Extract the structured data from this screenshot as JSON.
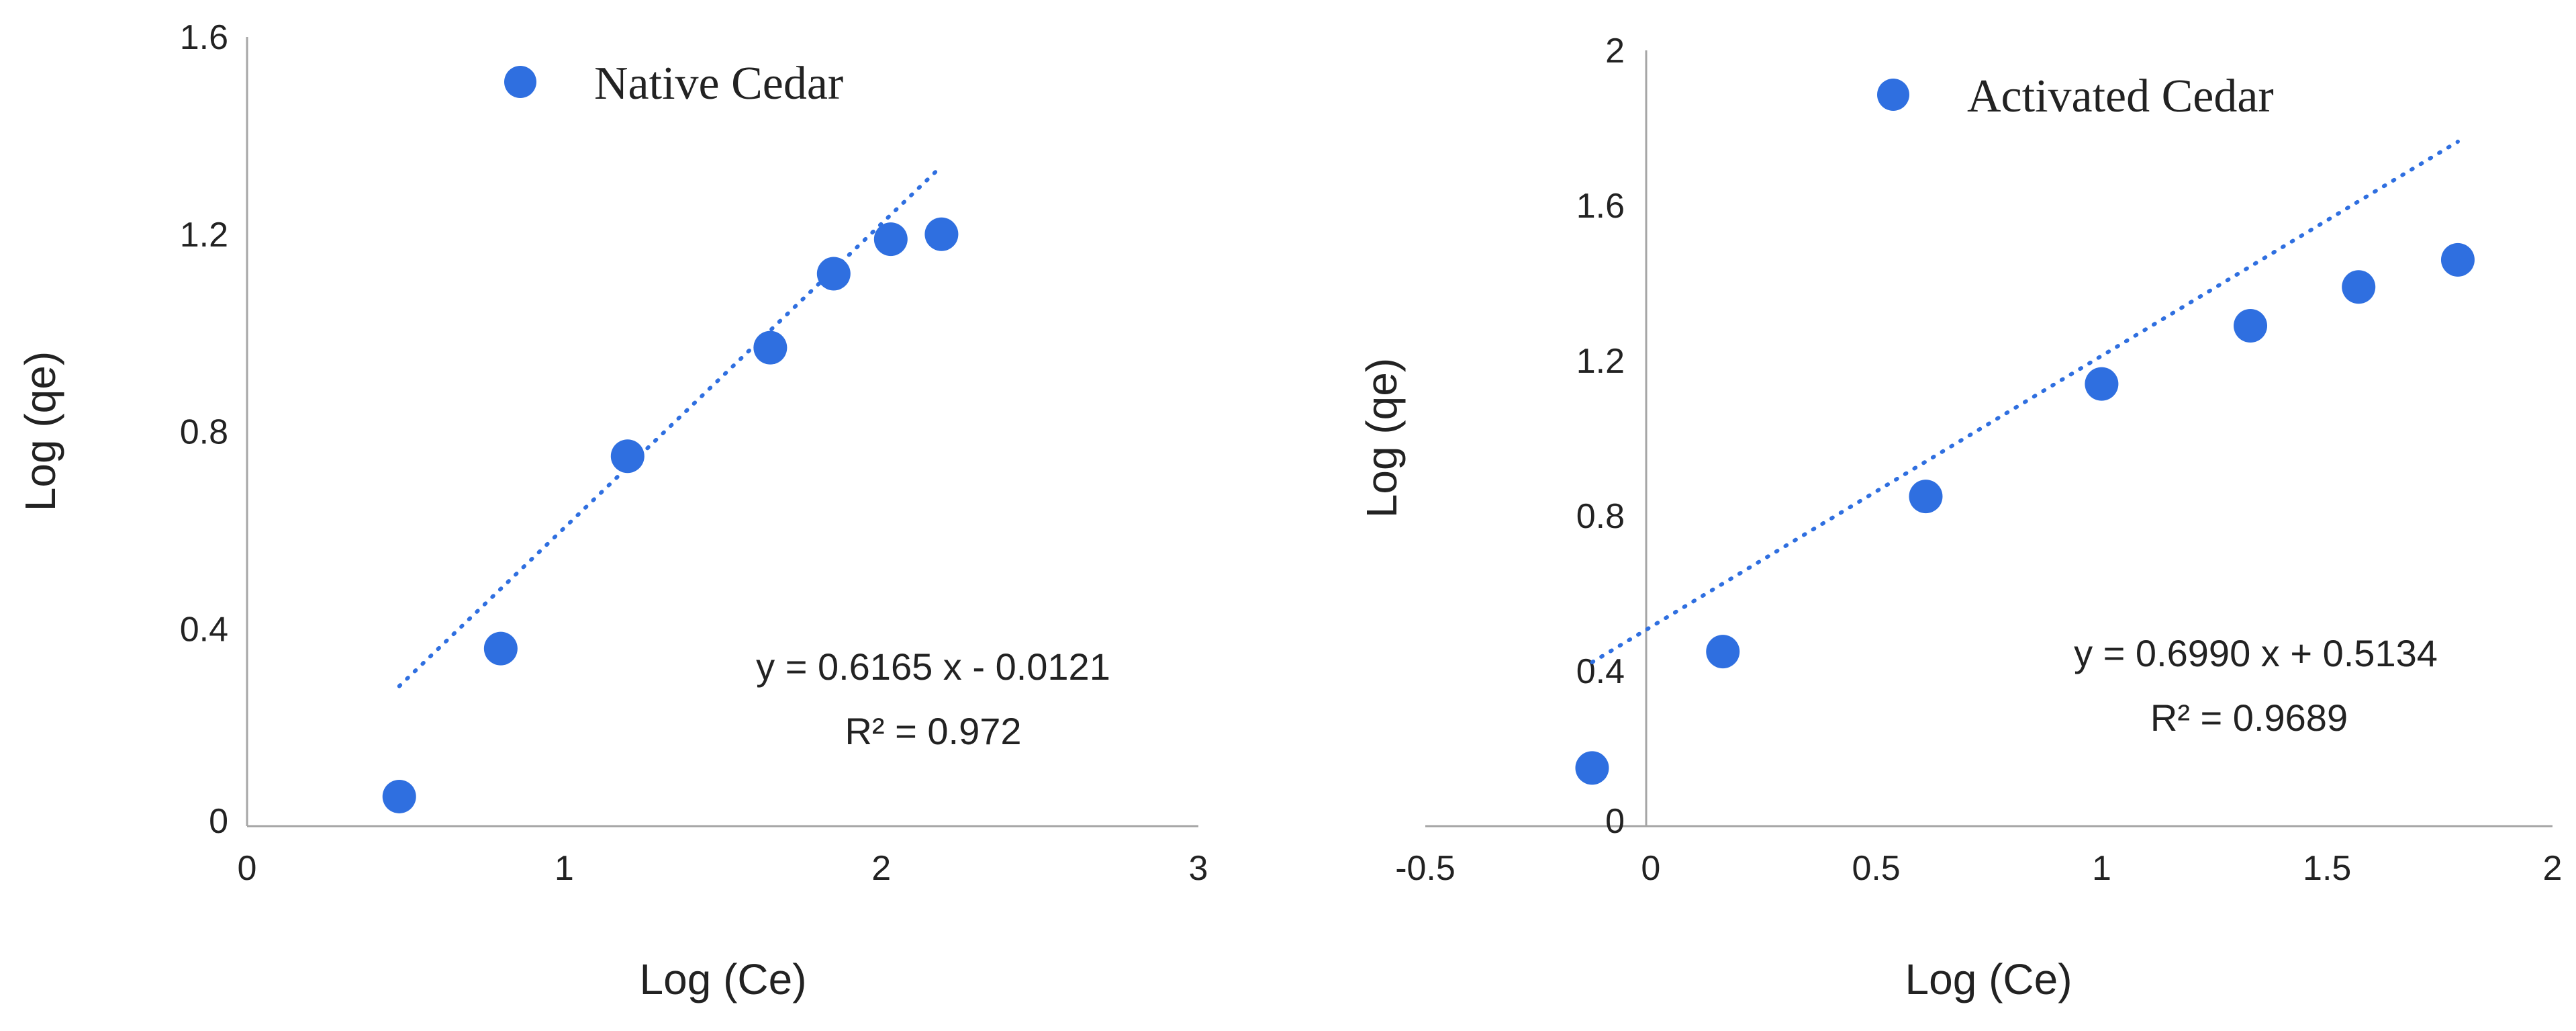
{
  "chart_data": [
    {
      "type": "scatter",
      "legend": "Native Cedar",
      "legend_position": "top",
      "xlabel": "Log (Ce)",
      "ylabel": "Log (qe)",
      "xlim": [
        0,
        3
      ],
      "ylim": [
        0,
        1.6
      ],
      "xticks": [
        "0",
        "1",
        "2",
        "3"
      ],
      "yticks": [
        "0",
        "0.4",
        "0.8",
        "1.2",
        "1.6"
      ],
      "points": [
        {
          "x": 0.48,
          "y": 0.06
        },
        {
          "x": 0.8,
          "y": 0.36
        },
        {
          "x": 1.2,
          "y": 0.75
        },
        {
          "x": 1.65,
          "y": 0.97
        },
        {
          "x": 1.85,
          "y": 1.12
        },
        {
          "x": 2.03,
          "y": 1.19
        },
        {
          "x": 2.19,
          "y": 1.2
        }
      ],
      "trendline": {
        "slope": 0.6165,
        "intercept": -0.0121,
        "x_range": [
          0.48,
          2.19
        ]
      },
      "equation": "y = 0.6165 x - 0.0121",
      "r_squared": "R² = 0.972",
      "marker_color": "#2f6fe0"
    },
    {
      "type": "scatter",
      "legend": "Activated Cedar",
      "legend_position": "top",
      "xlabel": "Log (Ce)",
      "ylabel": "Log (qe)",
      "xlim": [
        -0.5,
        2
      ],
      "ylim": [
        0,
        2
      ],
      "xticks": [
        "-0.5",
        "0",
        "0.5",
        "1",
        "1.5",
        "2"
      ],
      "yticks": [
        "0",
        "0.4",
        "0.8",
        "1.2",
        "1.6",
        "2"
      ],
      "points": [
        {
          "x": -0.13,
          "y": 0.15
        },
        {
          "x": 0.16,
          "y": 0.45
        },
        {
          "x": 0.61,
          "y": 0.85
        },
        {
          "x": 1.0,
          "y": 1.14
        },
        {
          "x": 1.33,
          "y": 1.29
        },
        {
          "x": 1.57,
          "y": 1.39
        },
        {
          "x": 1.79,
          "y": 1.46
        }
      ],
      "trendline": {
        "slope": 0.699,
        "intercept": 0.5134,
        "x_range": [
          -0.13,
          1.79
        ]
      },
      "equation": "y = 0.6990 x + 0.5134",
      "r_squared": "R² = 0.9689",
      "marker_color": "#2f6fe0"
    }
  ]
}
